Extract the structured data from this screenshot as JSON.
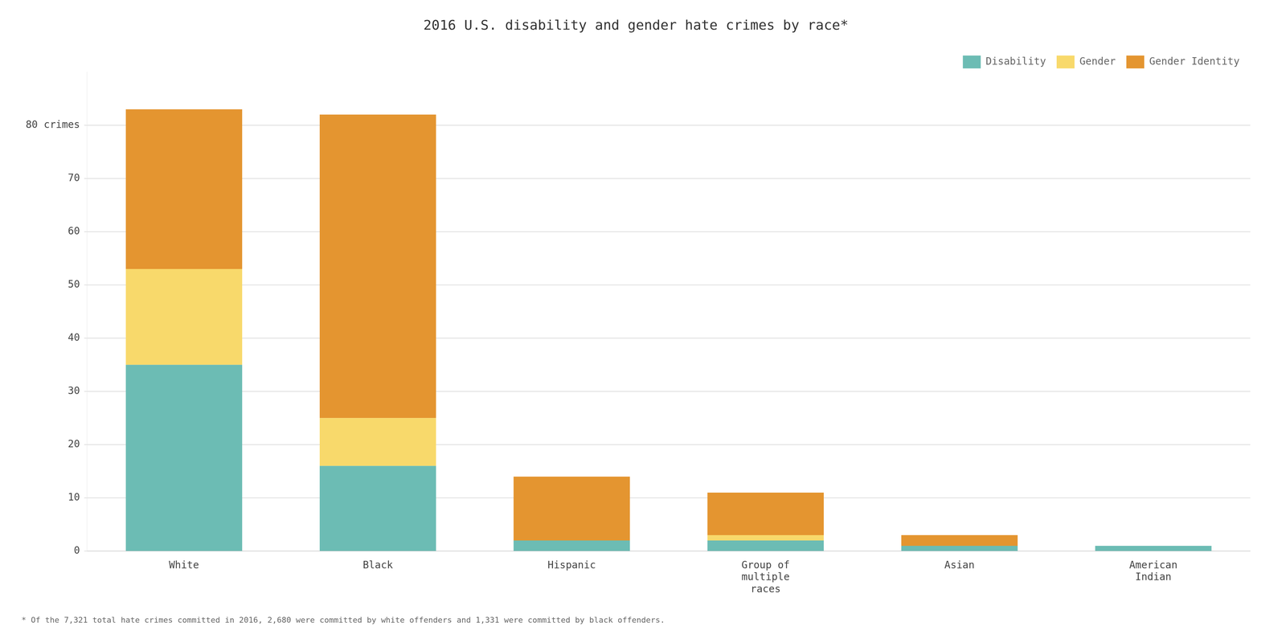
{
  "chart_data": {
    "type": "bar",
    "title": "2016 U.S. disability and gender hate crimes by race*",
    "categories": [
      "White",
      "Black",
      "Hispanic",
      "Group of\nmultiple\nraces",
      "Asian",
      "American\nIndian"
    ],
    "series": [
      {
        "name": "Disability",
        "color": "#6cbcb4",
        "values": [
          35,
          16,
          2,
          2,
          1,
          1
        ]
      },
      {
        "name": "Gender",
        "color": "#f8d96b",
        "values": [
          18,
          9,
          0,
          1,
          0,
          0
        ]
      },
      {
        "name": "Gender Identity",
        "color": "#e49530",
        "values": [
          30,
          57,
          12,
          8,
          2,
          0
        ]
      }
    ],
    "ylim": [
      0,
      90
    ],
    "yticks": [
      0,
      10,
      20,
      30,
      40,
      50,
      60,
      70,
      {
        "value": 80,
        "label": "80 crimes"
      }
    ],
    "stacked": true,
    "grid": true,
    "legend": "upper right",
    "footnote": "* Of the 7,321 total hate crimes committed in 2016, 2,680 were committed by white offenders and 1,331 were committed by black offenders."
  }
}
